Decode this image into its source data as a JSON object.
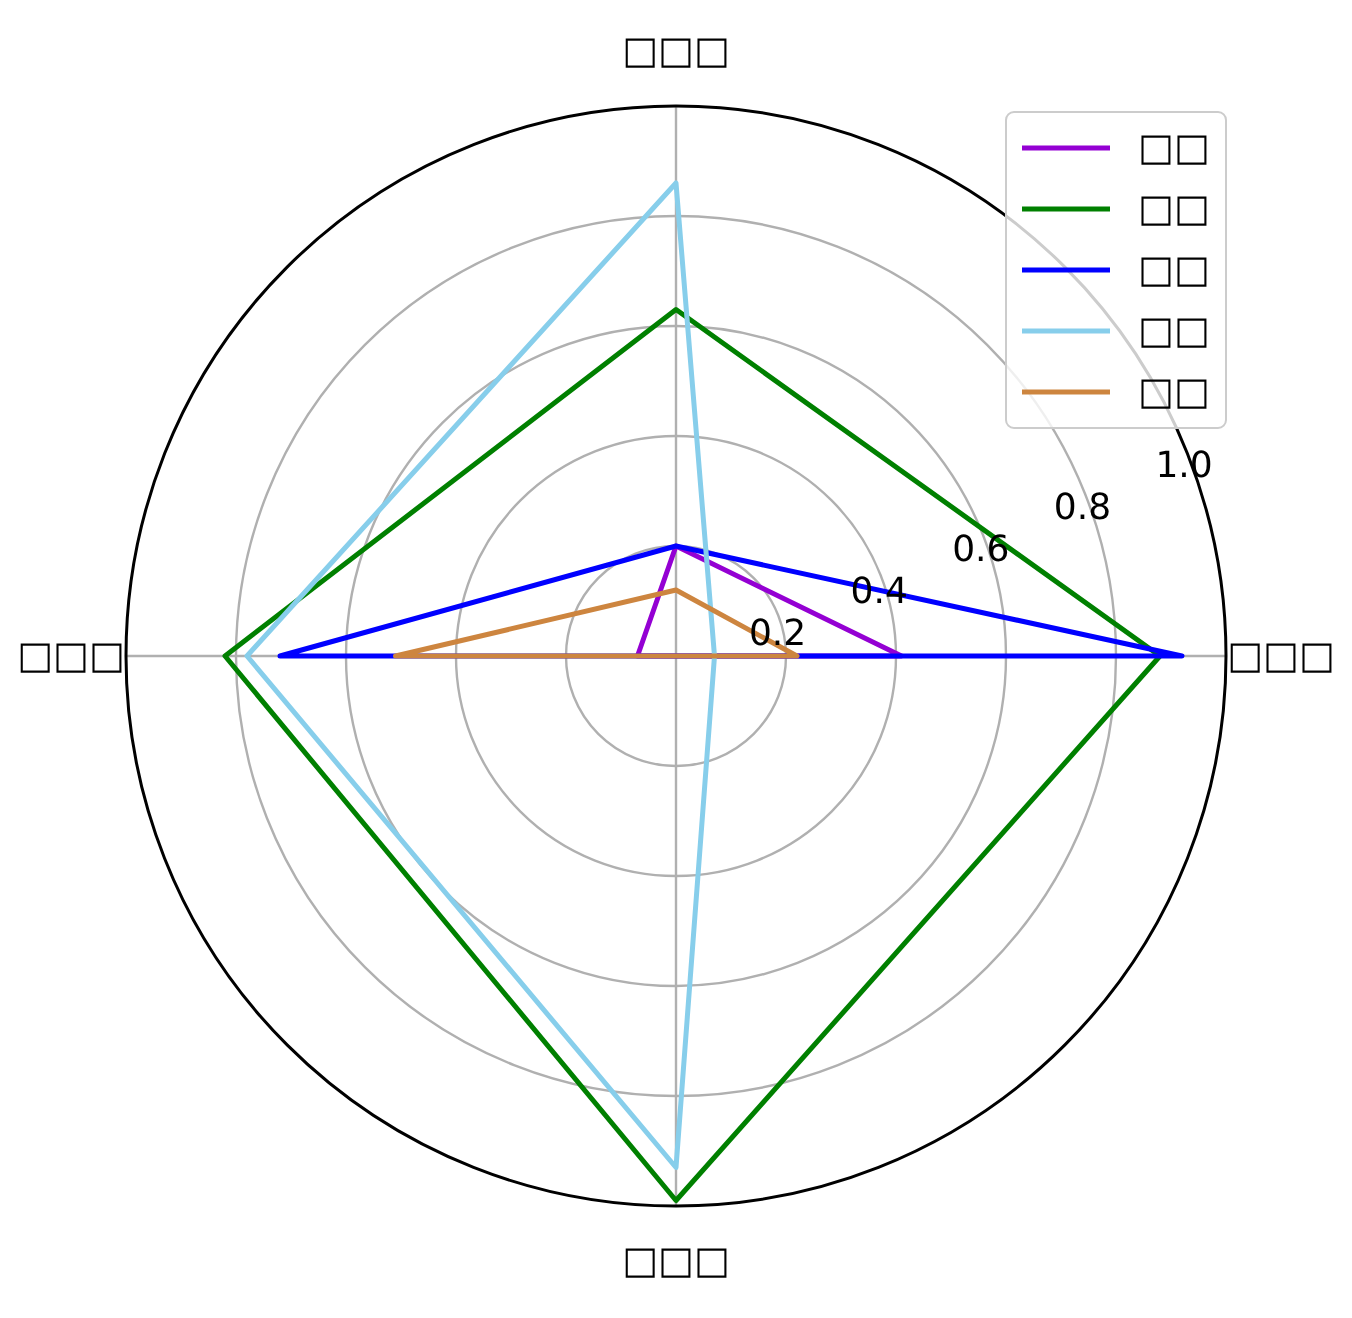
{
  "chart_data": {
    "type": "radar",
    "categories": [
      "□□□",
      "□□□",
      "□□□",
      "□□□"
    ],
    "series": [
      {
        "name": "□□",
        "color": "#9400d3",
        "values": [
          0.2,
          0.41,
          0,
          0.07
        ]
      },
      {
        "name": "□□",
        "color": "#008000",
        "values": [
          0.63,
          0.88,
          0.99,
          0.82
        ]
      },
      {
        "name": "□□",
        "color": "#0000ff",
        "values": [
          0.2,
          0.92,
          0,
          0.72
        ]
      },
      {
        "name": "□□",
        "color": "#87ceeb",
        "values": [
          0.86,
          0.07,
          0.93,
          0.78
        ]
      },
      {
        "name": "□□",
        "color": "#cd853f",
        "values": [
          0.12,
          0.22,
          0,
          0.51
        ]
      }
    ],
    "ylim": [
      0,
      1
    ],
    "yticks": [
      0.2,
      0.4,
      0.6,
      0.8,
      {
        "value": 1,
        "label": "1.0"
      }
    ],
    "grid": true,
    "legend": "top right"
  }
}
